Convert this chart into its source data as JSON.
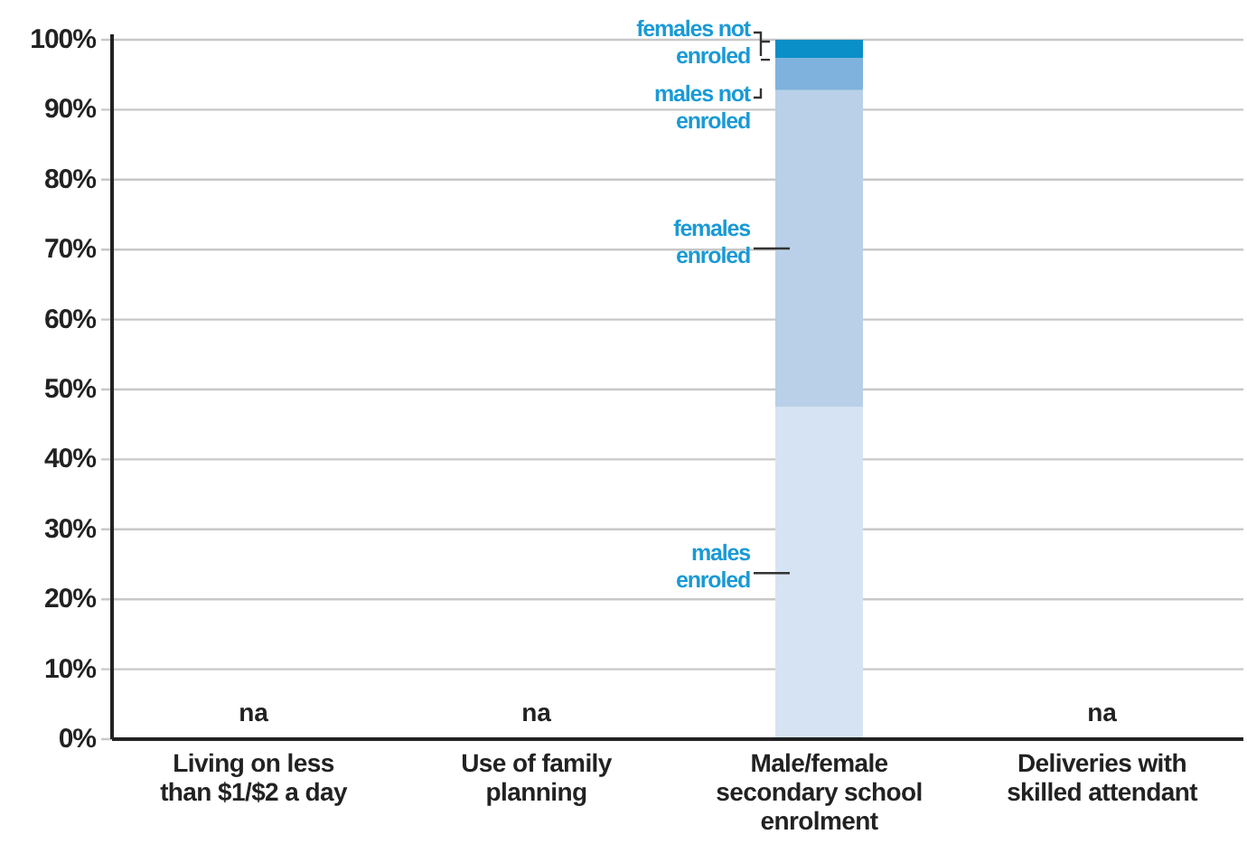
{
  "chart_data": {
    "type": "bar",
    "stacked": true,
    "categories": [
      "Living on less than $1/$2 a day",
      "Use of family planning",
      "Male/female secondary school enrolment",
      "Deliveries with skilled attendant"
    ],
    "series": [
      {
        "name": "males enroled",
        "color": "#d6e3f2",
        "values": [
          null,
          null,
          47.5,
          null
        ],
        "value_labels": [
          "na",
          "na",
          null,
          "na"
        ]
      },
      {
        "name": "females enroled",
        "color": "#b9d0e8",
        "values": [
          null,
          null,
          45.3,
          null
        ]
      },
      {
        "name": "males not enroled",
        "color": "#7fb2dc",
        "values": [
          null,
          null,
          4.6,
          null
        ]
      },
      {
        "name": "females not enroled",
        "color": "#0a8fc8",
        "values": [
          null,
          null,
          2.6,
          null
        ]
      }
    ],
    "ylim": [
      0,
      100
    ],
    "yticks": [
      {
        "value": 0,
        "label": "0%"
      },
      {
        "value": 10,
        "label": "10%"
      },
      {
        "value": 20,
        "label": "20%"
      },
      {
        "value": 30,
        "label": "30%"
      },
      {
        "value": 40,
        "label": "40%"
      },
      {
        "value": 50,
        "label": "50%"
      },
      {
        "value": 60,
        "label": "60%"
      },
      {
        "value": 70,
        "label": "70%"
      },
      {
        "value": 80,
        "label": "80%"
      },
      {
        "value": 90,
        "label": "90%"
      },
      {
        "value": 100,
        "label": "100%"
      }
    ],
    "grid": "y",
    "legend": false
  }
}
